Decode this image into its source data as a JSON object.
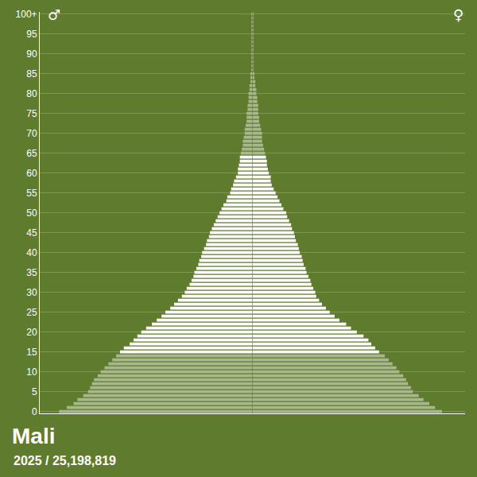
{
  "chart_data": {
    "type": "bar",
    "orientation": "horizontal",
    "title": "Mali",
    "subtitle": "2025 / 25,198,819",
    "categories": [
      0,
      1,
      2,
      3,
      4,
      5,
      6,
      7,
      8,
      9,
      10,
      11,
      12,
      13,
      14,
      15,
      16,
      17,
      18,
      19,
      20,
      21,
      22,
      23,
      24,
      25,
      26,
      27,
      28,
      29,
      30,
      31,
      32,
      33,
      34,
      35,
      36,
      37,
      38,
      39,
      40,
      41,
      42,
      43,
      44,
      45,
      46,
      47,
      48,
      49,
      50,
      51,
      52,
      53,
      54,
      55,
      56,
      57,
      58,
      59,
      60,
      61,
      62,
      63,
      64,
      65,
      66,
      67,
      68,
      69,
      70,
      71,
      72,
      73,
      74,
      75,
      76,
      77,
      78,
      79,
      80,
      81,
      82,
      83,
      84,
      85,
      86,
      87,
      88,
      89,
      90,
      91,
      92,
      93,
      94,
      95,
      96,
      97,
      98,
      99,
      100
    ],
    "series": [
      {
        "name": "♂",
        "values": [
          2.0,
          1.92,
          1.85,
          1.81,
          1.75,
          1.7,
          1.68,
          1.66,
          1.64,
          1.6,
          1.57,
          1.53,
          1.49,
          1.45,
          1.41,
          1.37,
          1.33,
          1.27,
          1.23,
          1.19,
          1.15,
          1.1,
          1.04,
          0.99,
          0.94,
          0.9,
          0.85,
          0.81,
          0.77,
          0.73,
          0.7,
          0.68,
          0.65,
          0.63,
          0.61,
          0.6,
          0.58,
          0.56,
          0.55,
          0.53,
          0.52,
          0.5,
          0.48,
          0.47,
          0.45,
          0.44,
          0.42,
          0.4,
          0.38,
          0.36,
          0.34,
          0.32,
          0.3,
          0.27,
          0.26,
          0.23,
          0.22,
          0.2,
          0.19,
          0.17,
          0.15,
          0.15,
          0.14,
          0.13,
          0.13,
          0.12,
          0.11,
          0.1,
          0.1,
          0.09,
          0.08,
          0.08,
          0.07,
          0.06,
          0.06,
          0.06,
          0.05,
          0.05,
          0.04,
          0.04,
          0.04,
          0.03,
          0.03,
          0.02,
          0.02,
          0.02,
          0.01,
          0.01,
          0.01,
          0.01,
          0.01,
          0.01,
          0.01,
          0.01,
          0.01,
          0.01,
          0.01,
          0.01,
          0.01,
          0.01,
          0.01
        ]
      },
      {
        "name": "♀",
        "values": [
          1.96,
          1.89,
          1.83,
          1.77,
          1.72,
          1.66,
          1.64,
          1.61,
          1.59,
          1.56,
          1.52,
          1.49,
          1.45,
          1.41,
          1.37,
          1.31,
          1.27,
          1.23,
          1.2,
          1.15,
          1.08,
          1.02,
          0.97,
          0.9,
          0.85,
          0.8,
          0.76,
          0.72,
          0.69,
          0.66,
          0.65,
          0.63,
          0.61,
          0.6,
          0.58,
          0.56,
          0.55,
          0.53,
          0.52,
          0.51,
          0.49,
          0.48,
          0.47,
          0.45,
          0.44,
          0.43,
          0.41,
          0.4,
          0.38,
          0.36,
          0.35,
          0.32,
          0.3,
          0.28,
          0.26,
          0.24,
          0.22,
          0.2,
          0.19,
          0.19,
          0.17,
          0.16,
          0.15,
          0.15,
          0.14,
          0.13,
          0.12,
          0.11,
          0.1,
          0.1,
          0.1,
          0.09,
          0.08,
          0.07,
          0.07,
          0.06,
          0.06,
          0.06,
          0.05,
          0.05,
          0.04,
          0.04,
          0.03,
          0.03,
          0.02,
          0.02,
          0.01,
          0.01,
          0.01,
          0.01,
          0.01,
          0.01,
          0.01,
          0.01,
          0.01,
          0.01,
          0.01,
          0.01,
          0.01,
          0.01,
          0.01
        ]
      }
    ],
    "colors": [
      "#a9b78f",
      "#a9b78f",
      "#a9b78f",
      "#a9b78f",
      "#a9b78f",
      "#a9b78f",
      "#a9b78f",
      "#a9b78f",
      "#a9b78f",
      "#a9b78f",
      "#a9b78f",
      "#a9b78f",
      "#a9b78f",
      "#a9b78f",
      "#a9b78f",
      "#ffffff",
      "#ffffff",
      "#ffffff",
      "#ffffff",
      "#ffffff",
      "#ffffff",
      "#ffffff",
      "#ffffff",
      "#ffffff",
      "#ffffff",
      "#ffffff",
      "#ffffff",
      "#ffffff",
      "#ffffff",
      "#ffffff",
      "#ffffff",
      "#ffffff",
      "#ffffff",
      "#ffffff",
      "#ffffff",
      "#ffffff",
      "#ffffff",
      "#ffffff",
      "#ffffff",
      "#ffffff",
      "#ffffff",
      "#ffffff",
      "#ffffff",
      "#ffffff",
      "#ffffff",
      "#ffffff",
      "#ffffff",
      "#ffffff",
      "#ffffff",
      "#ffffff",
      "#ffffff",
      "#ffffff",
      "#ffffff",
      "#ffffff",
      "#ffffff",
      "#ffffff",
      "#ffffff",
      "#ffffff",
      "#ffffff",
      "#ffffff",
      "#ffffff",
      "#ffffff",
      "#ffffff",
      "#ffffff",
      "#ffffff",
      "#a9b78f",
      "#a9b78f",
      "#a9b78f",
      "#a9b78f",
      "#a9b78f",
      "#a9b78f",
      "#a9b78f",
      "#a9b78f",
      "#a9b78f",
      "#a9b78f",
      "#a9b78f",
      "#a9b78f",
      "#a9b78f",
      "#a9b78f",
      "#a9b78f",
      "#a9b78f",
      "#a9b78f",
      "#a9b78f",
      "#a9b78f",
      "#a9b78f",
      "#a9b78f",
      "#a9b78f",
      "#a9b78f",
      "#a9b78f",
      "#a9b78f",
      "#a9b78f",
      "#a9b78f",
      "#a9b78f",
      "#a9b78f",
      "#a9b78f",
      "#a9b78f",
      "#a9b78f",
      "#a9b78f",
      "#a9b78f",
      "#a9b78f",
      "#a9b78f"
    ],
    "xlim": [
      0,
      2.2
    ],
    "ylim": [
      -0.5,
      100.5
    ],
    "yticks": [
      0,
      5,
      10,
      15,
      20,
      25,
      30,
      35,
      40,
      45,
      50,
      55,
      60,
      65,
      70,
      75,
      80,
      85,
      90,
      95,
      {
        "value": 100,
        "label": "100+"
      }
    ],
    "grid": true,
    "tick_labels": "y"
  }
}
